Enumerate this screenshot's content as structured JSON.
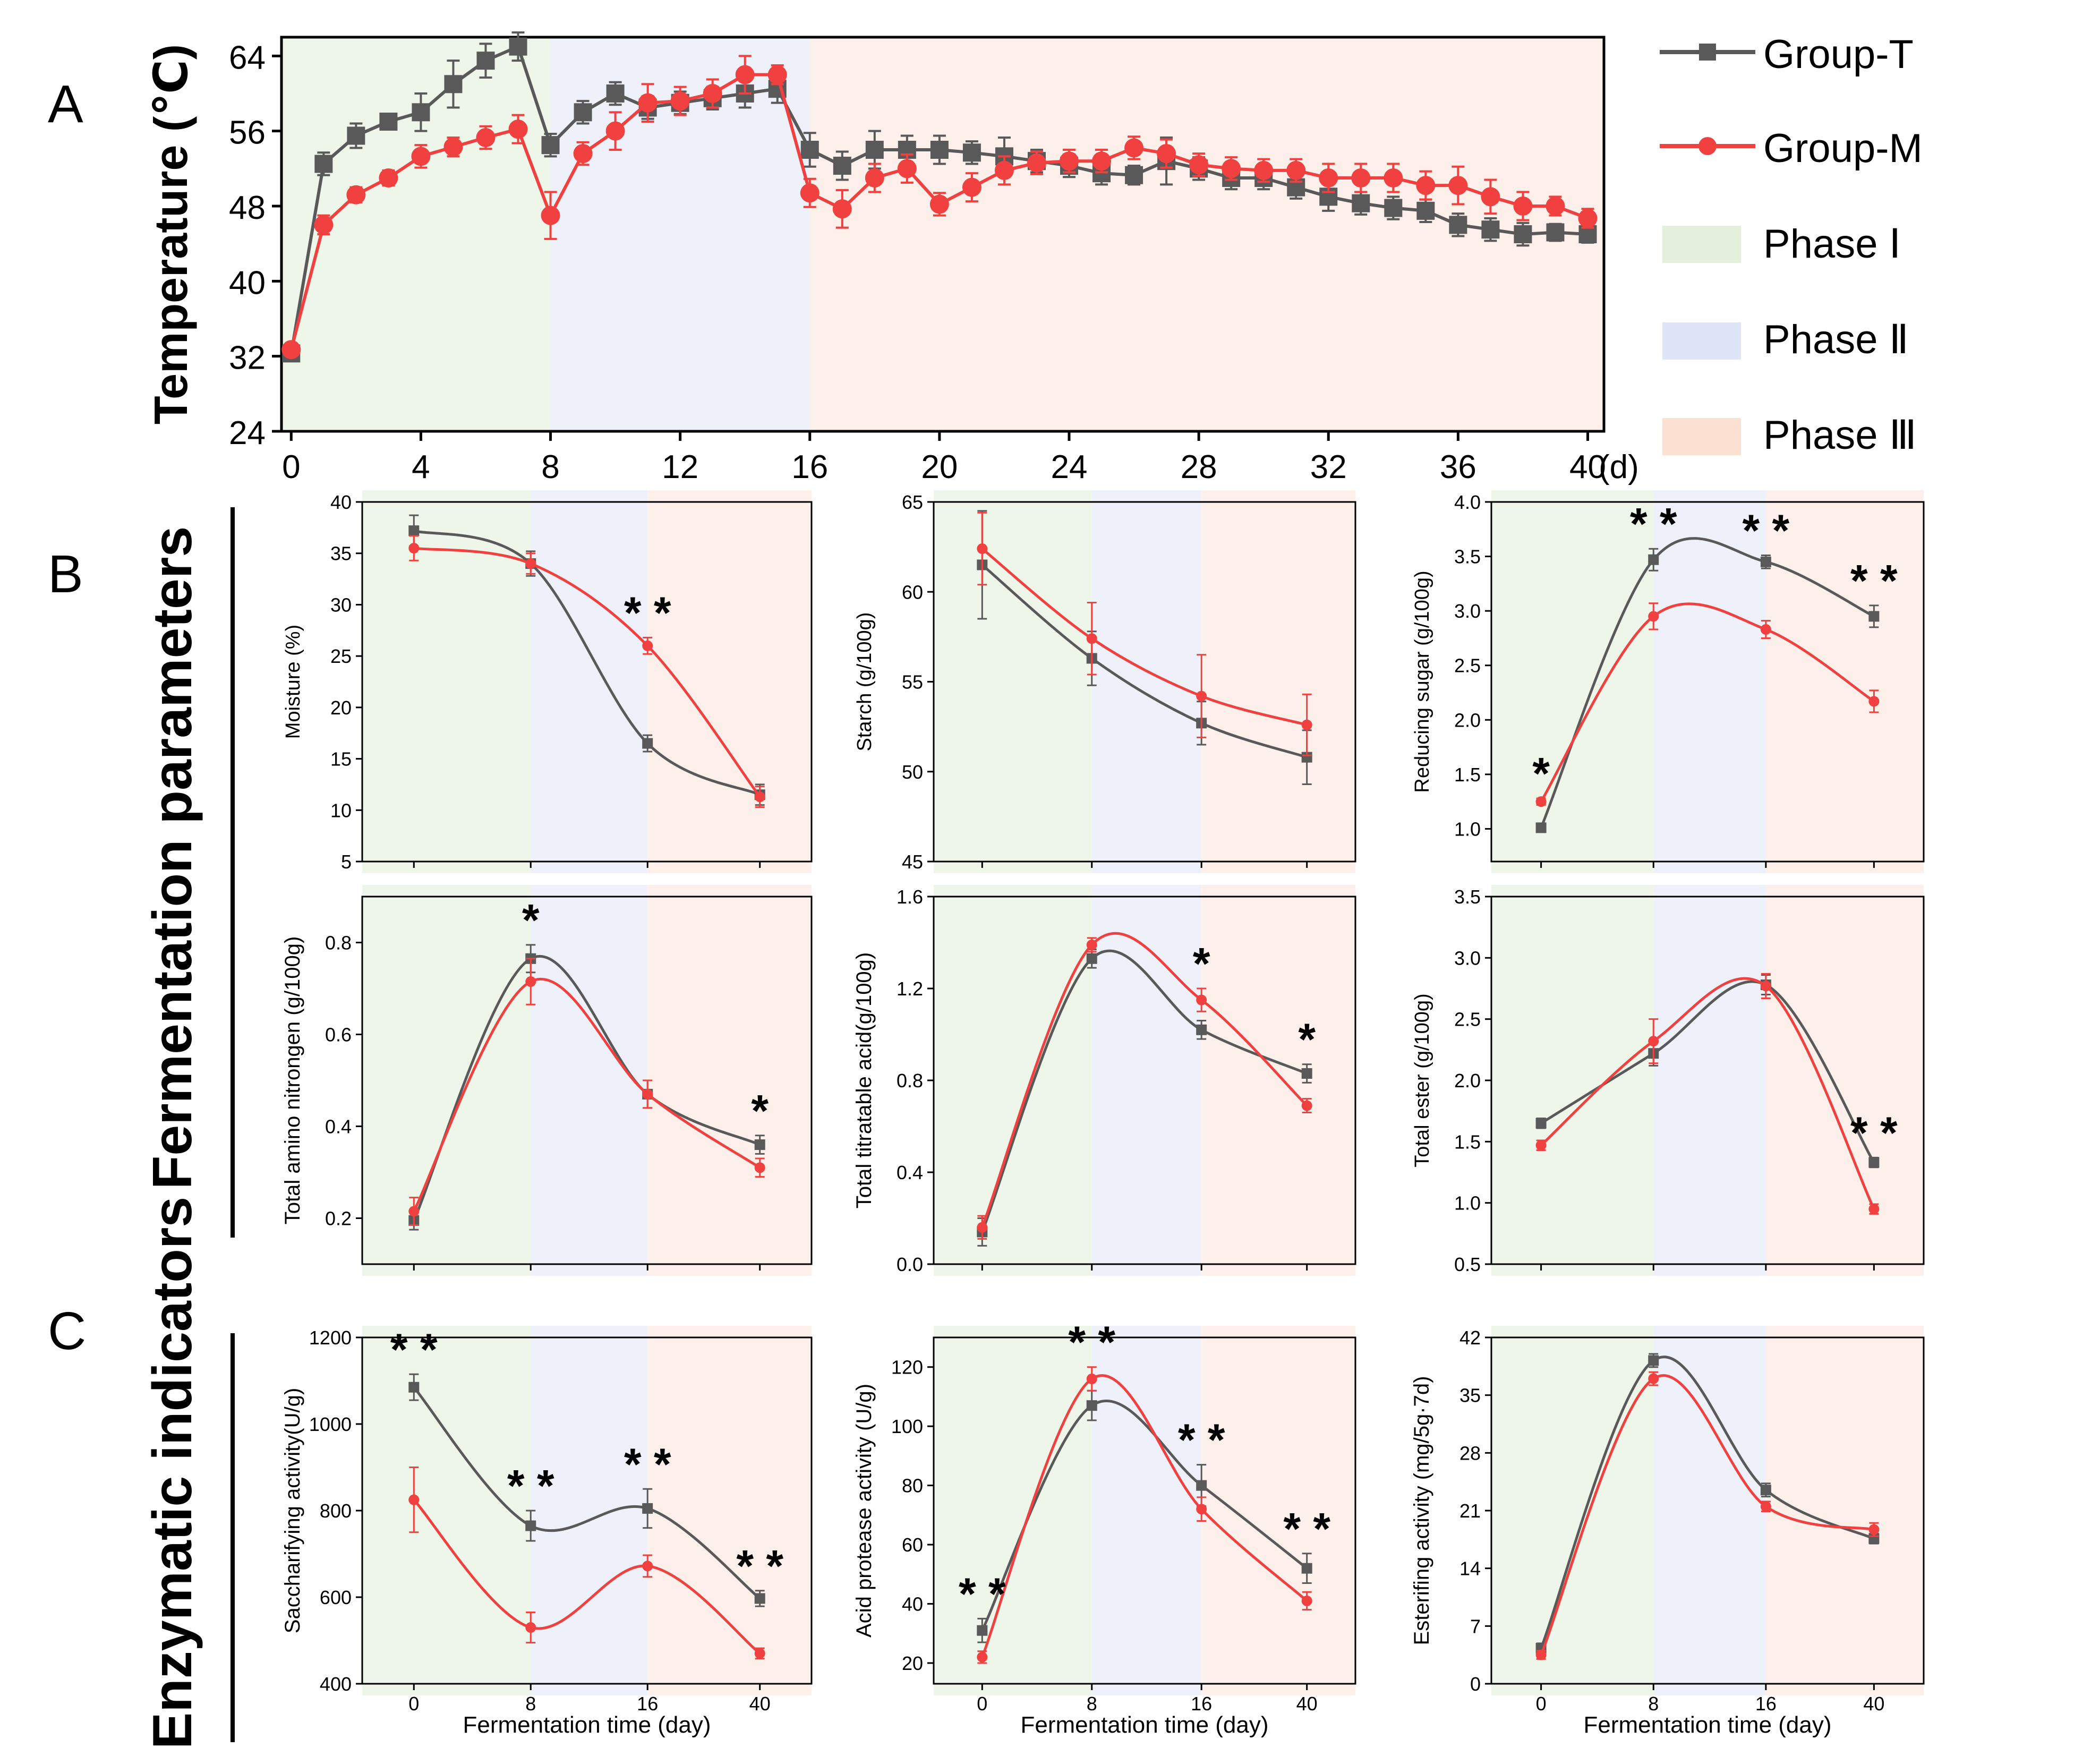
{
  "colors": {
    "group_t": "#595959",
    "group_m": "#f0403f",
    "phase_1": "#eef5e9",
    "phase_2": "#eef1fa",
    "phase_3": "#fdf0ea",
    "legend_phase_1": "#e5f0dc",
    "legend_phase_2": "#dde5f6",
    "legend_phase_3": "#fce0d2",
    "text": "#000000"
  },
  "panel_labels": {
    "a": "A",
    "b": "B",
    "c": "C"
  },
  "section_titles": {
    "fermentation": "Fermentation parameters",
    "enzymatic": "Enzymatic indicators"
  },
  "legend": {
    "group_t": "Group-T",
    "group_m": "Group-M",
    "phase_1": "Phase Ⅰ",
    "phase_2": "Phase Ⅱ",
    "phase_3": "Phase Ⅲ"
  },
  "chart_data": [
    {
      "id": "temperature",
      "type": "line",
      "panel": "A",
      "title": "",
      "ylabel": "Temperature (℃)",
      "xunit": "(d)",
      "xlim": [
        -0.3,
        40.5
      ],
      "ylim": [
        24,
        66
      ],
      "xticks": [
        0,
        4,
        8,
        12,
        16,
        20,
        24,
        28,
        32,
        36,
        40
      ],
      "yticks": [
        24,
        32,
        40,
        48,
        56,
        64
      ],
      "phases": [
        [
          -0.3,
          8
        ],
        [
          8,
          16
        ],
        [
          16,
          40.5
        ]
      ],
      "series": [
        {
          "name": "Group-T",
          "x": [
            0,
            1,
            2,
            3,
            4,
            5,
            6,
            7,
            8,
            9,
            10,
            11,
            12,
            13,
            14,
            15,
            16,
            17,
            18,
            19,
            20,
            21,
            22,
            23,
            24,
            25,
            26,
            27,
            28,
            29,
            30,
            31,
            32,
            33,
            34,
            35,
            36,
            37,
            38,
            39,
            40
          ],
          "y": [
            32.3,
            52.5,
            55.5,
            57.0,
            58.0,
            61.0,
            63.5,
            65.0,
            54.5,
            58.0,
            60.0,
            58.5,
            59.0,
            59.5,
            60.0,
            60.5,
            54.0,
            52.3,
            54.0,
            54.0,
            54.0,
            53.7,
            53.3,
            52.8,
            52.3,
            51.5,
            51.3,
            52.8,
            52.0,
            51.0,
            51.0,
            50.0,
            49.0,
            48.3,
            47.8,
            47.5,
            46.0,
            45.5,
            45.0,
            45.2,
            45.0
          ],
          "err": [
            0.6,
            1.2,
            1.3,
            0.8,
            2.0,
            2.5,
            1.8,
            1.5,
            1.2,
            1.2,
            1.2,
            1.2,
            1.2,
            1.2,
            1.5,
            1.5,
            1.8,
            1.5,
            2.0,
            1.5,
            1.5,
            1.2,
            2.0,
            1.2,
            1.2,
            1.2,
            1.0,
            2.5,
            1.2,
            1.2,
            1.2,
            1.2,
            1.5,
            1.2,
            1.2,
            1.2,
            1.2,
            1.2,
            1.2,
            0.9,
            0.9
          ]
        },
        {
          "name": "Group-M",
          "x": [
            0,
            1,
            2,
            3,
            4,
            5,
            6,
            7,
            8,
            9,
            10,
            11,
            12,
            13,
            14,
            15,
            16,
            17,
            18,
            19,
            20,
            21,
            22,
            23,
            24,
            25,
            26,
            27,
            28,
            29,
            30,
            31,
            32,
            33,
            34,
            35,
            36,
            37,
            38,
            39,
            40
          ],
          "y": [
            32.7,
            46.0,
            49.2,
            51.0,
            53.3,
            54.3,
            55.3,
            56.2,
            47.0,
            53.6,
            56.0,
            59.0,
            59.2,
            60.0,
            62.0,
            62.0,
            49.4,
            47.7,
            51.0,
            52.0,
            48.2,
            50.0,
            51.8,
            52.6,
            52.8,
            52.8,
            54.2,
            53.6,
            52.4,
            52.0,
            51.8,
            51.8,
            51.0,
            51.0,
            51.0,
            50.2,
            50.2,
            49.0,
            48.0,
            48.0,
            46.7
          ],
          "err": [
            0.6,
            1.0,
            0.8,
            0.8,
            1.2,
            1.0,
            1.2,
            1.5,
            2.5,
            1.2,
            2.0,
            2.0,
            1.5,
            1.5,
            2.0,
            1.0,
            1.5,
            2.0,
            1.5,
            1.5,
            1.2,
            1.5,
            1.5,
            1.2,
            1.2,
            1.2,
            1.2,
            1.5,
            1.2,
            1.2,
            1.2,
            1.2,
            1.5,
            1.5,
            1.5,
            1.5,
            2.0,
            1.8,
            1.5,
            1.0,
            1.0
          ]
        }
      ]
    },
    {
      "id": "moisture",
      "type": "line",
      "panel": "B",
      "ylabel": "Moisture (%)",
      "xlabel": "",
      "xcats": [
        "0",
        "8",
        "16",
        "40"
      ],
      "ylim": [
        5,
        40
      ],
      "yticks": [
        5,
        10,
        15,
        20,
        25,
        30,
        35,
        40
      ],
      "series": [
        {
          "name": "Group-T",
          "values": [
            37.2,
            34.0,
            16.5,
            11.5
          ],
          "err": [
            1.5,
            1.2,
            0.8,
            1.0
          ]
        },
        {
          "name": "Group-M",
          "values": [
            35.5,
            34.0,
            26.0,
            11.3
          ],
          "err": [
            1.2,
            1.0,
            0.8,
            1.0
          ]
        }
      ],
      "annotations": [
        {
          "x": "16",
          "y": 26.0,
          "text": "**"
        }
      ]
    },
    {
      "id": "starch",
      "type": "line",
      "panel": "B",
      "ylabel": "Starch (g/100g)",
      "xlabel": "",
      "xcats": [
        "0",
        "8",
        "16",
        "40"
      ],
      "ylim": [
        45,
        65
      ],
      "yticks": [
        45,
        50,
        55,
        60,
        65
      ],
      "series": [
        {
          "name": "Group-T",
          "values": [
            61.5,
            56.3,
            52.7,
            50.8
          ],
          "err": [
            3.0,
            1.5,
            1.2,
            1.5
          ]
        },
        {
          "name": "Group-M",
          "values": [
            62.4,
            57.4,
            54.2,
            52.6
          ],
          "err": [
            2.0,
            2.0,
            2.3,
            1.7
          ]
        }
      ],
      "annotations": []
    },
    {
      "id": "reducing-sugar",
      "type": "line",
      "panel": "B",
      "ylabel": "Reducing sugar (g/100g)",
      "xlabel": "",
      "xcats": [
        "0",
        "8",
        "16",
        "40"
      ],
      "ylim": [
        0.7,
        4.0
      ],
      "yticks": [
        1.0,
        1.5,
        2.0,
        2.5,
        3.0,
        3.5,
        4.0
      ],
      "series": [
        {
          "name": "Group-T",
          "values": [
            1.01,
            3.47,
            3.45,
            2.95
          ],
          "err": [
            0.03,
            0.1,
            0.06,
            0.1
          ]
        },
        {
          "name": "Group-M",
          "values": [
            1.25,
            2.95,
            2.83,
            2.17
          ],
          "err": [
            0.03,
            0.12,
            0.08,
            0.1
          ]
        }
      ],
      "annotations": [
        {
          "x": "0",
          "y": 1.25,
          "text": "*"
        },
        {
          "x": "8",
          "y": 3.47,
          "text": "**"
        },
        {
          "x": "16",
          "y": 3.45,
          "text": "**"
        },
        {
          "x": "40",
          "y": 2.95,
          "text": "**"
        }
      ]
    },
    {
      "id": "amino-nitrogen",
      "type": "line",
      "panel": "B",
      "ylabel": "Total amino nitrongen (g/100g)",
      "xlabel": "",
      "xcats": [
        "0",
        "8",
        "16",
        "40"
      ],
      "ylim": [
        0.1,
        0.9
      ],
      "yticks": [
        0.2,
        0.4,
        0.6,
        0.8
      ],
      "series": [
        {
          "name": "Group-T",
          "values": [
            0.195,
            0.765,
            0.47,
            0.36
          ],
          "err": [
            0.02,
            0.03,
            0.03,
            0.02
          ]
        },
        {
          "name": "Group-M",
          "values": [
            0.215,
            0.715,
            0.47,
            0.31
          ],
          "err": [
            0.03,
            0.05,
            0.03,
            0.02
          ]
        }
      ],
      "annotations": [
        {
          "x": "8",
          "y": 0.765,
          "text": "*"
        },
        {
          "x": "40",
          "y": 0.36,
          "text": "*"
        }
      ]
    },
    {
      "id": "titratable-acid",
      "type": "line",
      "panel": "B",
      "ylabel": "Total titratable acid(g/100g)",
      "xlabel": "",
      "xcats": [
        "0",
        "8",
        "16",
        "40"
      ],
      "ylim": [
        0.0,
        1.6
      ],
      "yticks": [
        0.0,
        0.4,
        0.8,
        1.2,
        1.6
      ],
      "series": [
        {
          "name": "Group-T",
          "values": [
            0.14,
            1.33,
            1.02,
            0.83
          ],
          "err": [
            0.06,
            0.04,
            0.04,
            0.04
          ]
        },
        {
          "name": "Group-M",
          "values": [
            0.16,
            1.39,
            1.15,
            0.69
          ],
          "err": [
            0.05,
            0.03,
            0.05,
            0.03
          ]
        }
      ],
      "annotations": [
        {
          "x": "16",
          "y": 1.15,
          "text": "*"
        },
        {
          "x": "40",
          "y": 0.83,
          "text": "*"
        }
      ]
    },
    {
      "id": "total-ester",
      "type": "line",
      "panel": "B",
      "ylabel": "Total ester (g/100g)",
      "xlabel": "",
      "xcats": [
        "0",
        "8",
        "16",
        "40"
      ],
      "ylim": [
        0.5,
        3.5
      ],
      "yticks": [
        0.5,
        1.0,
        1.5,
        2.0,
        2.5,
        3.0,
        3.5
      ],
      "series": [
        {
          "name": "Group-T",
          "values": [
            1.65,
            2.22,
            2.78,
            1.33
          ],
          "err": [
            0.04,
            0.1,
            0.08,
            0.04
          ]
        },
        {
          "name": "Group-M",
          "values": [
            1.47,
            2.32,
            2.77,
            0.95
          ],
          "err": [
            0.04,
            0.18,
            0.1,
            0.04
          ]
        }
      ],
      "annotations": [
        {
          "x": "40",
          "y": 1.33,
          "text": "**"
        }
      ]
    },
    {
      "id": "saccharifying",
      "type": "line",
      "panel": "C",
      "ylabel": "Saccharifying activity(U/g)",
      "xlabel": "Fermentation time (day)",
      "xcats": [
        "0",
        "8",
        "16",
        "40"
      ],
      "ylim": [
        400,
        1200
      ],
      "yticks": [
        400,
        600,
        800,
        1000,
        1200
      ],
      "series": [
        {
          "name": "Group-T",
          "values": [
            1085,
            765,
            805,
            597
          ],
          "err": [
            30,
            35,
            45,
            18
          ]
        },
        {
          "name": "Group-M",
          "values": [
            825,
            530,
            672,
            470
          ],
          "err": [
            75,
            35,
            25,
            12
          ]
        }
      ],
      "annotations": [
        {
          "x": "0",
          "y": 1085,
          "text": "**"
        },
        {
          "x": "8",
          "y": 765,
          "text": "**"
        },
        {
          "x": "16",
          "y": 805,
          "text": "**"
        },
        {
          "x": "40",
          "y": 597,
          "text": "**"
        }
      ]
    },
    {
      "id": "acid-protease",
      "type": "line",
      "panel": "C",
      "ylabel": "Acid protease activity (U/g)",
      "xlabel": "Fermentation time (day)",
      "xcats": [
        "0",
        "8",
        "16",
        "40"
      ],
      "ylim": [
        13,
        130
      ],
      "yticks": [
        20,
        40,
        60,
        80,
        100,
        120
      ],
      "series": [
        {
          "name": "Group-T",
          "values": [
            31,
            107,
            80,
            52
          ],
          "err": [
            4,
            5,
            7,
            5
          ]
        },
        {
          "name": "Group-M",
          "values": [
            22,
            116,
            72,
            41
          ],
          "err": [
            2,
            4,
            4,
            3
          ]
        }
      ],
      "annotations": [
        {
          "x": "0",
          "y": 31,
          "text": "**"
        },
        {
          "x": "8",
          "y": 116,
          "text": "**"
        },
        {
          "x": "16",
          "y": 80,
          "text": "**"
        },
        {
          "x": "40",
          "y": 52,
          "text": "**"
        }
      ]
    },
    {
      "id": "esterifying",
      "type": "line",
      "panel": "C",
      "ylabel": "Esterifing activity (mg/5g·7d)",
      "xlabel": "Fermentation time (day)",
      "xcats": [
        "0",
        "8",
        "16",
        "40"
      ],
      "ylim": [
        0,
        42
      ],
      "yticks": [
        0,
        7,
        14,
        21,
        28,
        35,
        42
      ],
      "series": [
        {
          "name": "Group-T",
          "values": [
            4.3,
            39.2,
            23.5,
            17.6
          ],
          "err": [
            0.6,
            0.8,
            0.8,
            0.6
          ]
        },
        {
          "name": "Group-M",
          "values": [
            3.5,
            37.0,
            21.5,
            18.7
          ],
          "err": [
            0.5,
            0.8,
            0.6,
            0.8
          ]
        }
      ],
      "annotations": []
    }
  ]
}
